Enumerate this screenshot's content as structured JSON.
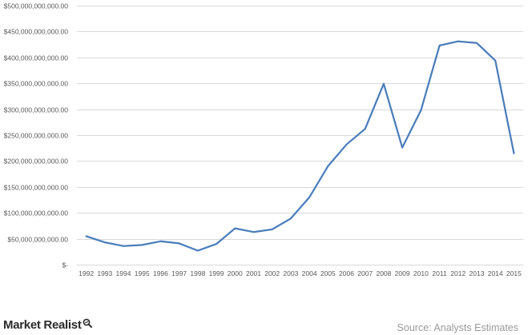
{
  "chart_data": {
    "type": "line",
    "title": "",
    "xlabel": "",
    "ylabel": "",
    "categories": [
      "1992",
      "1993",
      "1994",
      "1995",
      "1996",
      "1997",
      "1998",
      "1999",
      "2000",
      "2001",
      "2002",
      "2003",
      "2004",
      "2005",
      "2006",
      "2007",
      "2008",
      "2009",
      "2010",
      "2011",
      "2012",
      "2013",
      "2014",
      "2015"
    ],
    "series": [
      {
        "values": [
          55000000000,
          43000000000,
          36000000000,
          38000000000,
          45000000000,
          41000000000,
          27000000000,
          40000000000,
          70000000000,
          63000000000,
          68000000000,
          89000000000,
          130000000000,
          190000000000,
          232000000000,
          262000000000,
          349000000000,
          226000000000,
          298000000000,
          423000000000,
          431000000000,
          428000000000,
          394000000000,
          215000000000
        ]
      }
    ],
    "ylim": [
      0,
      500000000000
    ],
    "ytick_labels": [
      "$-",
      "$50,000,000,000.00",
      "$100,000,000,000.00",
      "$150,000,000,000.00",
      "$200,000,000,000.00",
      "$250,000,000,000.00",
      "$300,000,000,000.00",
      "$350,000,000,000.00",
      "$400,000,000,000.00",
      "$450,000,000,000.00",
      "$500,000,000,000.00"
    ],
    "grid": true,
    "legend": "none",
    "series_color": "#4a7ebb",
    "grid_color": "#d9d9d9"
  },
  "branding": {
    "logo_text": "Market Realist",
    "source_text": "Source: Analysts Estimates"
  }
}
